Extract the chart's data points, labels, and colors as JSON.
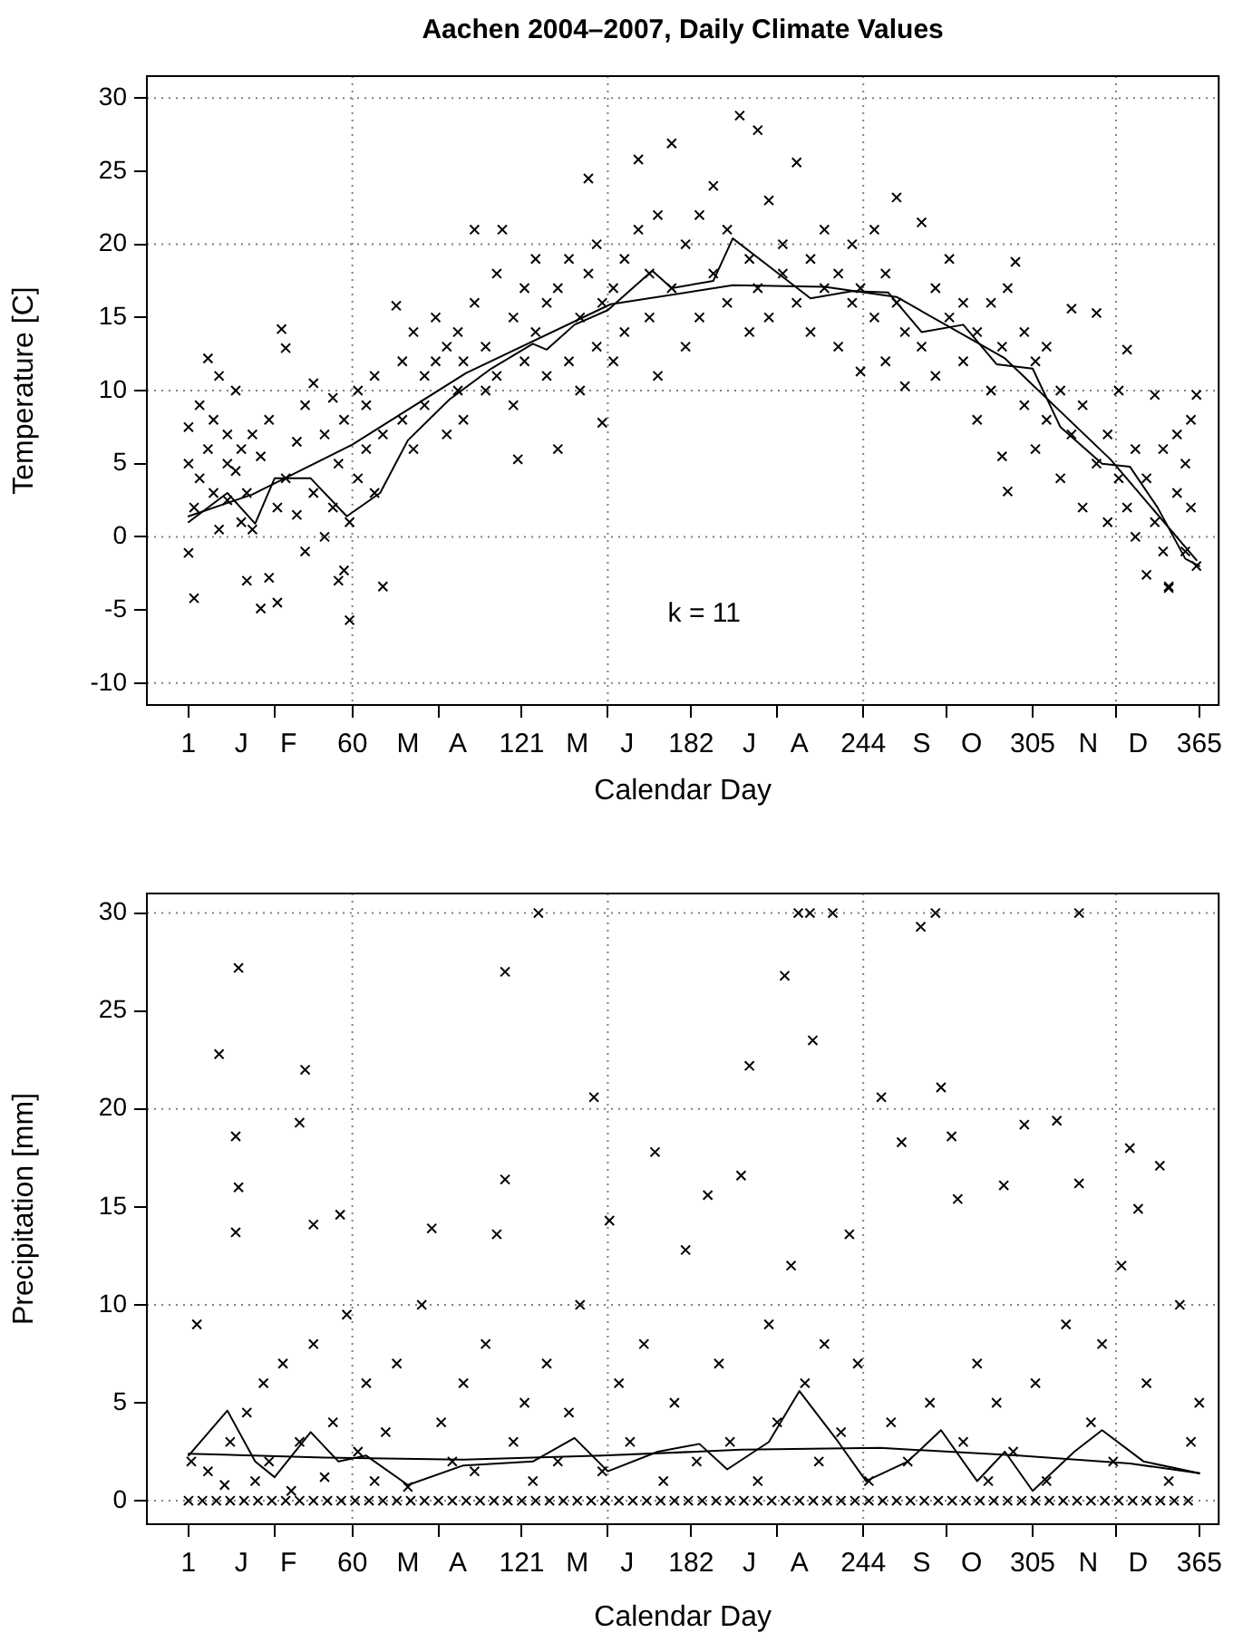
{
  "chart_data": [
    {
      "type": "scatter",
      "title": "Aachen 2004–2007, Daily Climate Values",
      "xlabel": "Calendar Day",
      "ylabel": "Temperature [C]",
      "annotations": [
        "k = 11"
      ],
      "xlim": [
        -14,
        372
      ],
      "ylim": [
        -11.5,
        31.5
      ],
      "xticks": [
        1,
        {
          "value": 20,
          "label": "J"
        },
        {
          "value": 32,
          "label": null
        },
        {
          "value": 37,
          "label": "F"
        },
        60,
        {
          "value": 80,
          "label": "M"
        },
        {
          "value": 91,
          "label": null
        },
        {
          "value": 98,
          "label": "A"
        },
        121,
        {
          "value": 141,
          "label": "M"
        },
        {
          "value": 152,
          "label": null
        },
        {
          "value": 159,
          "label": "J"
        },
        182,
        {
          "value": 203,
          "label": "J"
        },
        {
          "value": 213,
          "label": null
        },
        {
          "value": 221,
          "label": "A"
        },
        244,
        {
          "value": 265,
          "label": "S"
        },
        {
          "value": 274,
          "label": null
        },
        {
          "value": 283,
          "label": "O"
        },
        305,
        {
          "value": 325,
          "label": "N"
        },
        {
          "value": 335,
          "label": null
        },
        {
          "value": 343,
          "label": "D"
        },
        365
      ],
      "yticks": [
        -10,
        -5,
        0,
        5,
        10,
        15,
        20,
        25,
        30
      ],
      "ref_lines": [
        {
          "axis": "x",
          "value": 60,
          "color": "#808080",
          "line_style": "dotted"
        },
        {
          "axis": "x",
          "value": 152,
          "color": "#808080",
          "line_style": "dotted"
        },
        {
          "axis": "x",
          "value": 244,
          "color": "#808080",
          "line_style": "dotted"
        },
        {
          "axis": "x",
          "value": 335,
          "color": "#808080",
          "line_style": "dotted"
        },
        {
          "axis": "y",
          "value": -10,
          "color": "#808080",
          "line_style": "dotted"
        },
        {
          "axis": "y",
          "value": 0,
          "color": "#808080",
          "line_style": "dotted"
        },
        {
          "axis": "y",
          "value": 10,
          "color": "#808080",
          "line_style": "dotted"
        },
        {
          "axis": "y",
          "value": 20,
          "color": "#808080",
          "line_style": "dotted"
        },
        {
          "axis": "y",
          "value": 30,
          "color": "#808080",
          "line_style": "dotted"
        }
      ],
      "series": [
        {
          "marker": "cross",
          "color": "#000000",
          "x": [
            1,
            1,
            1,
            3,
            3,
            5,
            5,
            8,
            8,
            10,
            10,
            12,
            12,
            15,
            15,
            15,
            18,
            18,
            20,
            20,
            22,
            22,
            24,
            24,
            27,
            27,
            30,
            30,
            33,
            33,
            34.5,
            36,
            36,
            40,
            40,
            43,
            43,
            46,
            46,
            50,
            50,
            53,
            53,
            55,
            55,
            57,
            57,
            59,
            59,
            62,
            62,
            65,
            65,
            68,
            68,
            71,
            71,
            75.8,
            78,
            78,
            82,
            82,
            86,
            86,
            90,
            90,
            94,
            94,
            98,
            98,
            100,
            100,
            104,
            104,
            108,
            108,
            112,
            112,
            114,
            118,
            118,
            119.6,
            122,
            122,
            126,
            126,
            130,
            130,
            134,
            134,
            138,
            138,
            142,
            142,
            145,
            145,
            148,
            148,
            150,
            150,
            154,
            154,
            158,
            158,
            163,
            163,
            167,
            167,
            170,
            170,
            175,
            175,
            180,
            180,
            185,
            185,
            190,
            190,
            195,
            195,
            199.5,
            203,
            203,
            206,
            206,
            210,
            210,
            215,
            215,
            220,
            220,
            225,
            225,
            230,
            230,
            235,
            235,
            240,
            240,
            243,
            243,
            248,
            248,
            252,
            252,
            256,
            256,
            259,
            259,
            265,
            265,
            270,
            270,
            275,
            275,
            280,
            280,
            285,
            285,
            290,
            290,
            294,
            294,
            296,
            296,
            298.8,
            302,
            302,
            306,
            306,
            310,
            310,
            315,
            315,
            319,
            319,
            323,
            323,
            328,
            328,
            332,
            332,
            336,
            336,
            339,
            339,
            342,
            342,
            346,
            346,
            349,
            349,
            352,
            352,
            354,
            354,
            357,
            357,
            360,
            360,
            362,
            362,
            364,
            364
          ],
          "values": [
            5,
            -1.1,
            7.5,
            -4.2,
            2,
            9,
            4,
            12.2,
            6,
            3,
            8,
            11,
            0.5,
            5,
            7,
            2.5,
            10,
            4.5,
            1,
            6,
            -3,
            3,
            0.5,
            7,
            -4.9,
            5.5,
            -2.8,
            8,
            -4.5,
            2,
            14.2,
            12.9,
            4,
            6.5,
            1.5,
            9,
            -1,
            10.5,
            3,
            7,
            0,
            9.5,
            2,
            -3,
            5,
            -2.3,
            8,
            -5.7,
            1,
            10,
            4,
            6,
            9,
            11,
            3,
            -3.4,
            7,
            15.8,
            12,
            8,
            14,
            6,
            11,
            9,
            15,
            12,
            13,
            7,
            10,
            14,
            8,
            12,
            21,
            16,
            13,
            10,
            18,
            11,
            21,
            15,
            9,
            5.3,
            17,
            12,
            14,
            19,
            11,
            16,
            17,
            6,
            12,
            19,
            15,
            10,
            24.5,
            18,
            13,
            20,
            7.8,
            16,
            17,
            12,
            19,
            14,
            25.8,
            21,
            15,
            18,
            11,
            22,
            26.9,
            17,
            20,
            13,
            15,
            22,
            18,
            24,
            16,
            21,
            28.8,
            19,
            14,
            27.8,
            17,
            23,
            15,
            18,
            20,
            25.6,
            16,
            14,
            19,
            17,
            21,
            13,
            18,
            16,
            20,
            11.3,
            17,
            21,
            15,
            18,
            12,
            23.2,
            16,
            10.3,
            14,
            21.5,
            13,
            17,
            11,
            15,
            19,
            12,
            16,
            14,
            8,
            16,
            10,
            5.5,
            13,
            3.1,
            17,
            18.8,
            9,
            14,
            12,
            6,
            8,
            13,
            4,
            10,
            15.6,
            7,
            2,
            9,
            15.3,
            5,
            1,
            7,
            4,
            10,
            12.8,
            2,
            6,
            0,
            -2.6,
            4,
            9.7,
            1,
            6,
            -1,
            -3.4,
            -3.5,
            3,
            7,
            -1,
            5,
            2,
            8,
            9.7,
            -2
          ]
        },
        {
          "type": "line",
          "color": "#000000",
          "x": [
            1,
            24,
            60,
            101,
            153,
            197,
            230,
            256,
            295,
            333,
            364
          ],
          "values": [
            1.4,
            2.9,
            6.3,
            11.2,
            15.9,
            17.2,
            17.1,
            16.4,
            12.2,
            5.3,
            -1.6
          ]
        },
        {
          "type": "line",
          "color": "#000000",
          "x": [
            1,
            15,
            25,
            32,
            45,
            58,
            70,
            80,
            95,
            110,
            125,
            130,
            140,
            152,
            168,
            175,
            190,
            197,
            210,
            225,
            240,
            253,
            265,
            280,
            292,
            305,
            315,
            330,
            340,
            350,
            360,
            365
          ],
          "values": [
            1,
            3,
            0.9,
            4,
            4,
            1.4,
            3,
            6.6,
            9.4,
            11.5,
            13.2,
            12.8,
            14.5,
            15.5,
            18.2,
            17,
            17.5,
            20.4,
            18.5,
            16.3,
            16.8,
            16.7,
            14,
            14.5,
            11.8,
            11.5,
            7.5,
            5,
            4.8,
            2,
            -1.5,
            -2
          ]
        }
      ]
    },
    {
      "type": "scatter",
      "xlabel": "Calendar Day",
      "ylabel": "Precipitation [mm]",
      "xlim": [
        -14,
        372
      ],
      "ylim": [
        -1.2,
        31
      ],
      "xticks": [
        1,
        {
          "value": 20,
          "label": "J"
        },
        {
          "value": 32,
          "label": null
        },
        {
          "value": 37,
          "label": "F"
        },
        60,
        {
          "value": 80,
          "label": "M"
        },
        {
          "value": 91,
          "label": null
        },
        {
          "value": 98,
          "label": "A"
        },
        121,
        {
          "value": 141,
          "label": "M"
        },
        {
          "value": 152,
          "label": null
        },
        {
          "value": 159,
          "label": "J"
        },
        182,
        {
          "value": 203,
          "label": "J"
        },
        {
          "value": 213,
          "label": null
        },
        {
          "value": 221,
          "label": "A"
        },
        244,
        {
          "value": 265,
          "label": "S"
        },
        {
          "value": 274,
          "label": null
        },
        {
          "value": 283,
          "label": "O"
        },
        305,
        {
          "value": 325,
          "label": "N"
        },
        {
          "value": 335,
          "label": null
        },
        {
          "value": 343,
          "label": "D"
        },
        365
      ],
      "yticks": [
        0,
        5,
        10,
        15,
        20,
        25,
        30
      ],
      "ref_lines": [
        {
          "axis": "x",
          "value": 60,
          "color": "#808080",
          "line_style": "dotted"
        },
        {
          "axis": "x",
          "value": 152,
          "color": "#808080",
          "line_style": "dotted"
        },
        {
          "axis": "x",
          "value": 244,
          "color": "#808080",
          "line_style": "dotted"
        },
        {
          "axis": "x",
          "value": 335,
          "color": "#808080",
          "line_style": "dotted"
        },
        {
          "axis": "y",
          "value": 0,
          "color": "#808080",
          "line_style": "dotted"
        },
        {
          "axis": "y",
          "value": 10,
          "color": "#808080",
          "line_style": "dotted"
        },
        {
          "axis": "y",
          "value": 20,
          "color": "#808080",
          "line_style": "dotted"
        },
        {
          "axis": "y",
          "value": 30,
          "color": "#808080",
          "line_style": "dotted"
        }
      ],
      "series": [
        {
          "marker": "cross",
          "color": "#000000",
          "x": [
            1,
            6,
            11,
            16,
            21,
            26,
            31,
            36,
            41,
            46,
            51,
            56,
            61,
            66,
            71,
            76,
            81,
            86,
            91,
            96,
            101,
            106,
            111,
            116,
            121,
            126,
            131,
            136,
            141,
            146,
            151,
            156,
            161,
            166,
            171,
            176,
            181,
            186,
            191,
            196,
            201,
            206,
            211,
            216,
            221,
            226,
            231,
            236,
            241,
            246,
            251,
            256,
            261,
            266,
            271,
            276,
            281,
            286,
            291,
            296,
            301,
            306,
            311,
            316,
            321,
            326,
            331,
            336,
            341,
            346,
            351,
            356,
            361,
            2,
            4,
            8,
            12,
            14,
            16,
            18,
            18,
            19,
            19,
            22,
            25,
            28,
            30,
            35,
            38,
            41,
            41,
            43,
            46,
            46,
            50,
            53,
            55.6,
            58,
            62,
            65,
            68,
            72,
            76,
            80,
            85,
            88.6,
            92,
            96,
            100,
            104,
            108,
            112,
            115,
            115,
            118,
            122,
            125,
            127,
            130,
            134,
            138,
            142,
            147,
            150,
            152.6,
            156,
            160,
            165,
            169,
            172,
            176,
            180,
            184,
            188,
            192,
            196,
            200,
            203,
            206,
            210,
            213,
            215.7,
            218,
            220.6,
            223,
            224.8,
            225.8,
            228,
            230,
            233,
            236,
            239,
            242,
            246,
            250.5,
            254,
            257.8,
            260,
            264.7,
            268,
            270,
            272,
            275.8,
            278,
            280,
            285,
            289,
            292,
            294.6,
            298,
            302,
            306,
            310,
            313.7,
            317,
            321.7,
            321.7,
            326,
            330,
            334,
            337,
            340,
            343,
            346,
            350.8,
            354,
            358,
            362,
            365
          ],
          "values": [
            0,
            0,
            0,
            0,
            0,
            0,
            0,
            0,
            0,
            0,
            0,
            0,
            0,
            0,
            0,
            0,
            0,
            0,
            0,
            0,
            0,
            0,
            0,
            0,
            0,
            0,
            0,
            0,
            0,
            0,
            0,
            0,
            0,
            0,
            0,
            0,
            0,
            0,
            0,
            0,
            0,
            0,
            0,
            0,
            0,
            0,
            0,
            0,
            0,
            0,
            0,
            0,
            0,
            0,
            0,
            0,
            0,
            0,
            0,
            0,
            0,
            0,
            0,
            0,
            0,
            0,
            0,
            0,
            0,
            0,
            0,
            0,
            0,
            2,
            9,
            1.5,
            22.8,
            0.8,
            3,
            13.7,
            18.6,
            27.2,
            16,
            4.5,
            1,
            6,
            2,
            7,
            0.5,
            19.3,
            3,
            22,
            14.1,
            8,
            1.2,
            4,
            14.6,
            9.5,
            2.5,
            6,
            1,
            3.5,
            7,
            0.7,
            10,
            13.9,
            4,
            2,
            6,
            1.5,
            8,
            13.6,
            27,
            16.4,
            3,
            5,
            1,
            30,
            7,
            2,
            4.5,
            10,
            20.6,
            1.5,
            14.3,
            6,
            3,
            8,
            17.8,
            1,
            5,
            12.8,
            2,
            15.6,
            7,
            3,
            16.6,
            22.2,
            1,
            9,
            4,
            26.8,
            12,
            30,
            6,
            30,
            23.5,
            2,
            8,
            30,
            3.5,
            13.6,
            7,
            1,
            20.6,
            4,
            18.3,
            2,
            29.3,
            5,
            30,
            21.1,
            18.6,
            15.4,
            3,
            7,
            1,
            5,
            16.1,
            2.5,
            19.2,
            6,
            1,
            19.4,
            9,
            30,
            16.2,
            4,
            8,
            2,
            12,
            18,
            14.9,
            6,
            17.1,
            1,
            10,
            3,
            5
          ]
        },
        {
          "type": "line",
          "color": "#000000",
          "x": [
            1,
            50,
            100,
            150,
            200,
            250,
            300,
            340,
            365
          ],
          "values": [
            2.4,
            2.2,
            2.1,
            2.3,
            2.6,
            2.7,
            2.3,
            1.9,
            1.4
          ]
        },
        {
          "type": "line",
          "color": "#000000",
          "x": [
            1,
            15,
            25,
            32,
            45,
            55,
            65,
            80,
            100,
            125,
            140,
            152,
            170,
            185,
            195,
            210,
            221,
            235,
            245,
            260,
            272,
            285,
            295,
            305,
            320,
            330,
            345,
            365
          ],
          "values": [
            2.3,
            4.6,
            2,
            1.2,
            3.5,
            2,
            2.3,
            0.8,
            1.8,
            2,
            3.2,
            1.5,
            2.5,
            2.9,
            1.6,
            3,
            5.6,
            3,
            1,
            2,
            3.6,
            1,
            2.5,
            0.5,
            2.5,
            3.6,
            2,
            1.4
          ]
        }
      ]
    }
  ]
}
